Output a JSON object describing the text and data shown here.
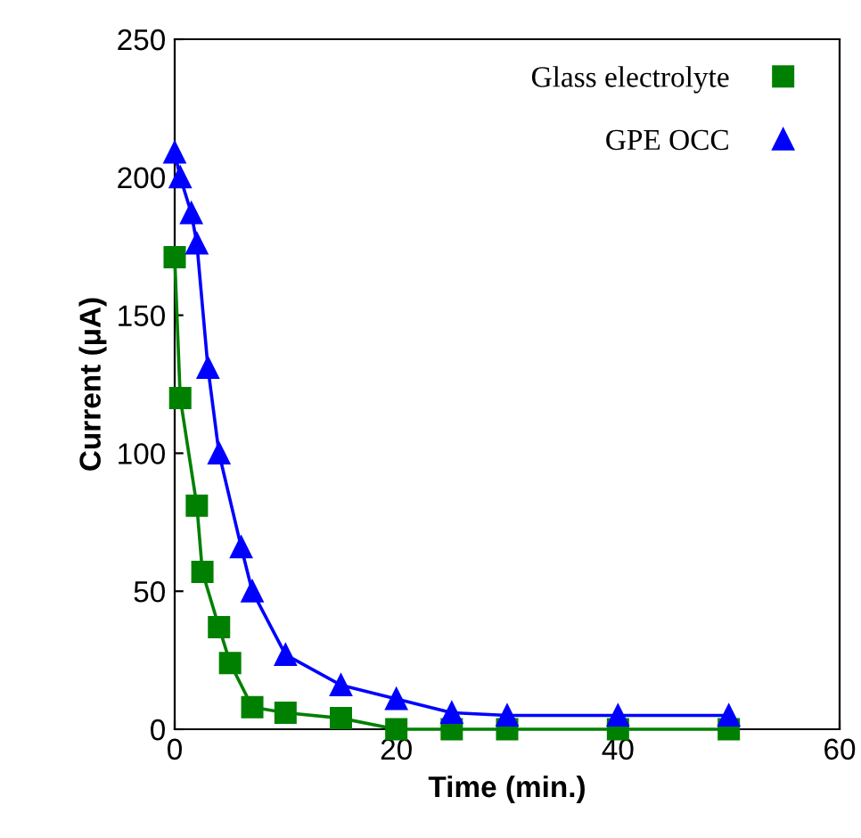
{
  "chart_data": {
    "type": "line",
    "xlabel": "Time (min.)",
    "ylabel": "Current (μA)",
    "xlim": [
      0,
      60
    ],
    "xticks": [
      0,
      20,
      40,
      60
    ],
    "ylim": [
      0,
      250
    ],
    "yticks": [
      0,
      50,
      100,
      150,
      200,
      250
    ],
    "grid": false,
    "legend": "top right",
    "series": [
      {
        "name": "Glass electrolyte",
        "color": "#008000",
        "marker": "square",
        "x": [
          0,
          0.5,
          2,
          2.5,
          4,
          5,
          7,
          10,
          15,
          20,
          25,
          30,
          40,
          50
        ],
        "values": [
          171,
          120,
          81,
          57,
          37,
          24,
          8,
          6,
          4,
          0,
          0,
          0,
          0,
          0
        ]
      },
      {
        "name": "GPE OCC",
        "color": "#0000ff",
        "marker": "triangle",
        "x": [
          0,
          0.5,
          1.5,
          2,
          3,
          4,
          6,
          7,
          10,
          15,
          20,
          25,
          30,
          40,
          50
        ],
        "values": [
          209,
          200,
          187,
          176,
          131,
          100,
          66,
          50,
          27,
          16,
          11,
          6,
          5,
          5,
          5
        ]
      }
    ]
  }
}
